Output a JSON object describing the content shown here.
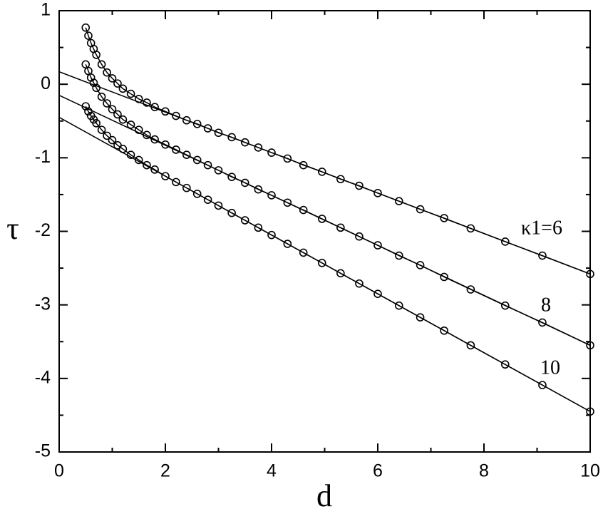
{
  "chart_data": {
    "type": "scatter-line",
    "x_label": "d",
    "y_label": "τ",
    "xlim": [
      0,
      10
    ],
    "ylim": [
      -5,
      1
    ],
    "xticks": [
      0,
      2,
      4,
      6,
      8,
      10
    ],
    "yticks": [
      -5,
      -4,
      -3,
      -2,
      -1,
      0,
      1
    ],
    "color": "#000000",
    "x": [
      0.5,
      0.55,
      0.6,
      0.65,
      0.7,
      0.8,
      0.9,
      1.0,
      1.1,
      1.2,
      1.35,
      1.5,
      1.65,
      1.8,
      2.0,
      2.2,
      2.4,
      2.6,
      2.8,
      3.0,
      3.25,
      3.5,
      3.75,
      4.0,
      4.3,
      4.6,
      4.95,
      5.3,
      5.65,
      6.0,
      6.4,
      6.8,
      7.25,
      7.75,
      8.4,
      9.1,
      10.0
    ],
    "series": [
      {
        "name": "κ1=6",
        "values": [
          0.77,
          0.66,
          0.56,
          0.48,
          0.4,
          0.27,
          0.16,
          0.08,
          0.01,
          -0.06,
          -0.13,
          -0.2,
          -0.25,
          -0.31,
          -0.37,
          -0.43,
          -0.49,
          -0.54,
          -0.6,
          -0.66,
          -0.72,
          -0.79,
          -0.86,
          -0.93,
          -1.01,
          -1.1,
          -1.19,
          -1.29,
          -1.38,
          -1.48,
          -1.59,
          -1.7,
          -1.82,
          -1.96,
          -2.14,
          -2.33,
          -2.58
        ],
        "fit": {
          "x": [
            0,
            10
          ],
          "values": [
            0.17,
            -2.58
          ]
        }
      },
      {
        "name": "8",
        "values": [
          0.27,
          0.18,
          0.09,
          0.02,
          -0.05,
          -0.17,
          -0.26,
          -0.34,
          -0.41,
          -0.48,
          -0.55,
          -0.62,
          -0.69,
          -0.75,
          -0.82,
          -0.89,
          -0.96,
          -1.03,
          -1.1,
          -1.17,
          -1.26,
          -1.34,
          -1.43,
          -1.51,
          -1.61,
          -1.71,
          -1.83,
          -1.95,
          -2.07,
          -2.19,
          -2.33,
          -2.46,
          -2.62,
          -2.79,
          -3.01,
          -3.24,
          -3.55
        ],
        "fit": {
          "x": [
            0,
            10
          ],
          "values": [
            -0.15,
            -3.55
          ]
        }
      },
      {
        "name": "10",
        "values": [
          -0.3,
          -0.37,
          -0.43,
          -0.48,
          -0.53,
          -0.62,
          -0.7,
          -0.76,
          -0.83,
          -0.88,
          -0.96,
          -1.03,
          -1.1,
          -1.16,
          -1.25,
          -1.33,
          -1.41,
          -1.49,
          -1.57,
          -1.65,
          -1.75,
          -1.85,
          -1.95,
          -2.05,
          -2.17,
          -2.29,
          -2.43,
          -2.57,
          -2.71,
          -2.85,
          -3.01,
          -3.17,
          -3.35,
          -3.55,
          -3.81,
          -4.09,
          -4.45
        ],
        "fit": {
          "x": [
            0,
            10
          ],
          "values": [
            -0.45,
            -4.45
          ]
        }
      }
    ]
  }
}
